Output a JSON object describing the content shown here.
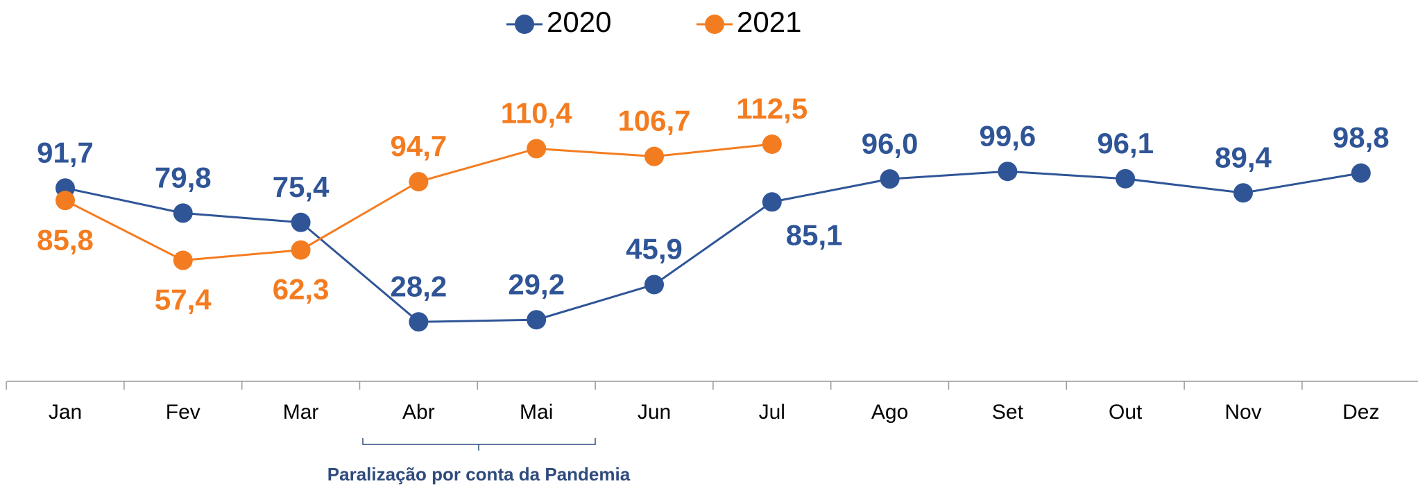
{
  "chart_data": {
    "type": "line",
    "categories": [
      "Jan",
      "Fev",
      "Mar",
      "Abr",
      "Mai",
      "Jun",
      "Jul",
      "Ago",
      "Set",
      "Out",
      "Nov",
      "Dez"
    ],
    "series": [
      {
        "name": "2020",
        "color": "#2f5597",
        "values": [
          91.7,
          79.8,
          75.4,
          28.2,
          29.2,
          45.9,
          85.1,
          96.0,
          99.6,
          96.1,
          89.4,
          98.8
        ],
        "value_labels": [
          "91,7",
          "79,8",
          "75,4",
          "28,2",
          "29,2",
          "45,9",
          "85,1",
          "96,0",
          "99,6",
          "96,1",
          "89,4",
          "98,8"
        ]
      },
      {
        "name": "2021",
        "color": "#f47c20",
        "values": [
          85.8,
          57.4,
          62.3,
          94.7,
          110.4,
          106.7,
          112.5,
          null,
          null,
          null,
          null,
          null
        ],
        "value_labels": [
          "85,8",
          "57,4",
          "62,3",
          "94,7",
          "110,4",
          "106,7",
          "112,5",
          null,
          null,
          null,
          null,
          null
        ]
      }
    ],
    "annotations": [
      "Paralização por conta da Pandemia"
    ]
  }
}
